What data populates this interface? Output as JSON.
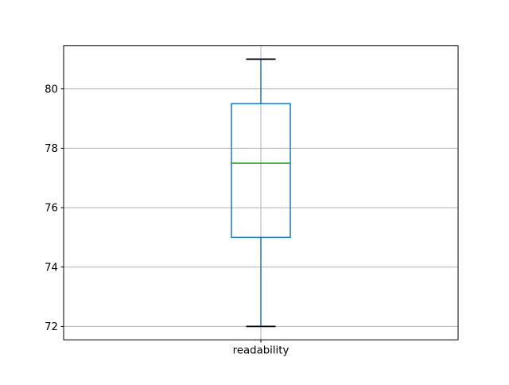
{
  "figure": {
    "background": "#ffffff"
  },
  "chart_data": {
    "type": "boxplot",
    "title": "",
    "xlabel": "",
    "ylabel": "",
    "categories": [
      "readability"
    ],
    "series": [
      {
        "name": "readability",
        "whisker_low": 72,
        "q1": 75,
        "median": 77.5,
        "q3": 79.5,
        "whisker_high": 81
      }
    ],
    "yticks": [
      72,
      74,
      76,
      78,
      80
    ],
    "ylim": [
      71.55,
      81.45
    ],
    "grid": true,
    "legend": "none",
    "colors": {
      "box": "#1f77b4",
      "whisker": "#1f77b4",
      "median": "#2ca02c",
      "cap": "#000000",
      "grid": "#b0b0b0",
      "spine": "#000000",
      "text": "#000000"
    }
  }
}
